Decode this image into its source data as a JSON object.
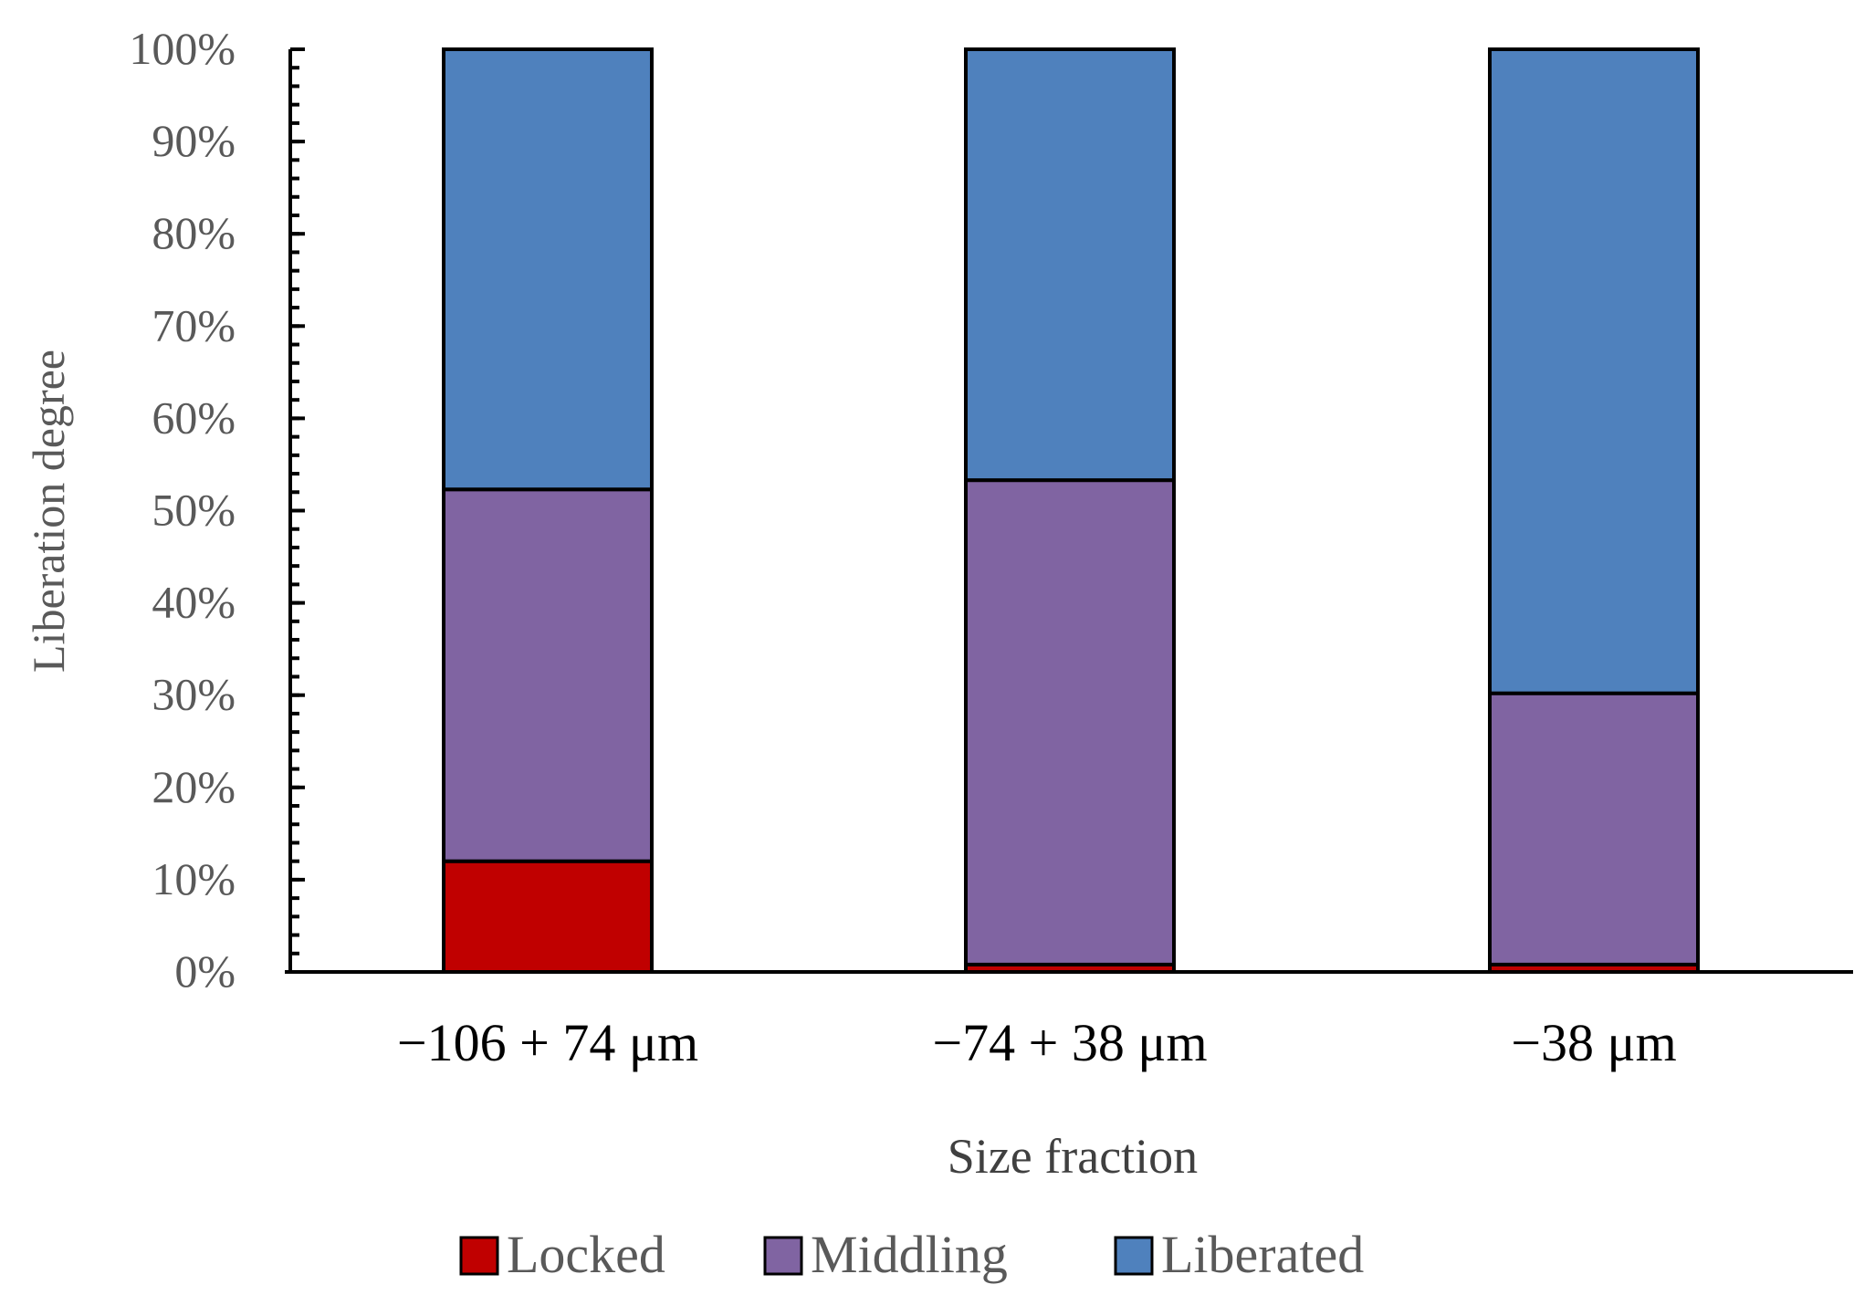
{
  "chart_data": {
    "type": "bar",
    "stacked": true,
    "title": "",
    "xlabel": "Size fraction",
    "ylabel": "Liberation degree",
    "categories": [
      "−106 + 74 μm",
      "−74 + 38 μm",
      "−38 μm"
    ],
    "series": [
      {
        "name": "Locked",
        "color": "#C00000",
        "values": [
          12,
          0.8,
          0.8
        ]
      },
      {
        "name": "Middling",
        "color": "#8064A2",
        "values": [
          40.3,
          52.5,
          29.4
        ]
      },
      {
        "name": "Liberated",
        "color": "#4F81BD",
        "values": [
          47.7,
          46.7,
          69.8
        ]
      }
    ],
    "ylim": [
      0,
      100
    ],
    "yticks": [
      0,
      10,
      20,
      30,
      40,
      50,
      60,
      70,
      80,
      90,
      100
    ],
    "ytick_labels": [
      "0%",
      "10%",
      "20%",
      "30%",
      "40%",
      "50%",
      "60%",
      "70%",
      "80%",
      "90%",
      "100%"
    ],
    "grid": false,
    "legend_position": "bottom"
  }
}
